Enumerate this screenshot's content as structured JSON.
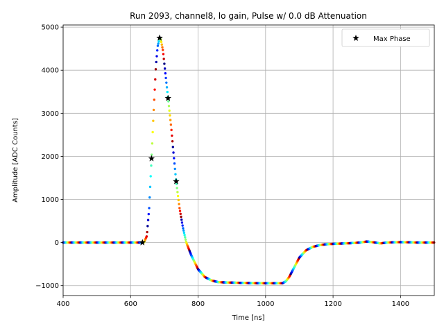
{
  "chart_data": {
    "type": "scatter",
    "title": "Run 2093, channel8, lo gain, Pulse w/ 0.0 dB Attenuation",
    "xlabel": "Time [ns]",
    "ylabel": "Amplitude [ADC Counts]",
    "xlim": [
      400,
      1500
    ],
    "ylim": [
      -1230,
      5050
    ],
    "xticks": [
      400,
      600,
      800,
      1000,
      1200,
      1400
    ],
    "yticks": [
      -1000,
      0,
      1000,
      2000,
      3000,
      4000,
      5000
    ],
    "ytick_labels": [
      "−1000",
      "0",
      "1000",
      "2000",
      "3000",
      "4000",
      "5000"
    ],
    "grid": true,
    "legend_position": "top-right",
    "colormap": "jet",
    "series": [
      {
        "name": "Max Phase",
        "marker": "star",
        "color": "#000000",
        "x": [
          635,
          662,
          686,
          711,
          735
        ],
        "y": [
          0,
          1950,
          4750,
          3350,
          1420
        ]
      }
    ],
    "pulse_trace": {
      "x": [
        400,
        600,
        630,
        640,
        648,
        655,
        662,
        668,
        675,
        680,
        686,
        690,
        696,
        702,
        711,
        720,
        728,
        735,
        745,
        755,
        765,
        780,
        800,
        820,
        840,
        860,
        900,
        950,
        1000,
        1030,
        1050,
        1060,
        1070,
        1080,
        1090,
        1100,
        1120,
        1140,
        1160,
        1180,
        1200,
        1250,
        1280,
        1300,
        1320,
        1340,
        1360,
        1400,
        1450,
        1500
      ],
      "y": [
        0,
        0,
        0,
        10,
        150,
        800,
        1950,
        3000,
        4100,
        4550,
        4750,
        4700,
        4450,
        4000,
        3350,
        2700,
        2000,
        1420,
        800,
        350,
        0,
        -300,
        -620,
        -800,
        -880,
        -920,
        -930,
        -940,
        -945,
        -945,
        -945,
        -900,
        -800,
        -650,
        -500,
        -350,
        -180,
        -100,
        -60,
        -40,
        -30,
        -15,
        0,
        25,
        5,
        -20,
        0,
        10,
        0,
        0
      ]
    }
  }
}
